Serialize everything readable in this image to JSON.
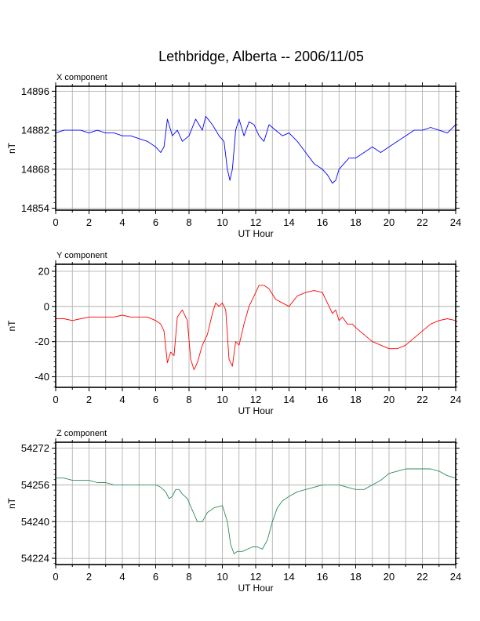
{
  "title": "Lethbridge, Alberta -- 2006/11/05",
  "chart_data": [
    {
      "type": "line",
      "panel_label": "X component",
      "xlabel": "UT Hour",
      "ylabel": "nT",
      "xlim": [
        0,
        24
      ],
      "ylim": [
        14853.3,
        14897.8
      ],
      "x_ticks": [
        0,
        2,
        4,
        6,
        8,
        10,
        12,
        14,
        16,
        18,
        20,
        22,
        24
      ],
      "y_ticks": [
        14896,
        14882,
        14868,
        14854
      ],
      "grid": true,
      "color": "#0000ff",
      "x": [
        0,
        0.5,
        1,
        1.5,
        2,
        2.5,
        3,
        3.5,
        4,
        4.5,
        5,
        5.5,
        6,
        6.3,
        6.5,
        6.7,
        7,
        7.3,
        7.6,
        8,
        8.4,
        8.8,
        9,
        9.4,
        9.8,
        10.1,
        10.3,
        10.45,
        10.6,
        10.8,
        11,
        11.3,
        11.6,
        11.9,
        12.2,
        12.5,
        12.8,
        13.2,
        13.6,
        14,
        14.5,
        15,
        15.5,
        16,
        16.3,
        16.6,
        16.8,
        17,
        17.3,
        17.6,
        18,
        18.5,
        19,
        19.5,
        20,
        20.5,
        21,
        21.5,
        22,
        22.5,
        23,
        23.5,
        24
      ],
      "values": [
        14881,
        14882,
        14882,
        14882,
        14881,
        14882,
        14881,
        14881,
        14880,
        14880,
        14879,
        14878,
        14876,
        14874,
        14876,
        14886,
        14880,
        14882,
        14878,
        14880,
        14886,
        14882,
        14887,
        14884,
        14880,
        14878,
        14868,
        14864,
        14868,
        14882,
        14886,
        14880,
        14885,
        14884,
        14880,
        14878,
        14884,
        14882,
        14880,
        14881,
        14878,
        14874,
        14870,
        14868,
        14866,
        14863,
        14864,
        14868,
        14870,
        14872,
        14872,
        14874,
        14876,
        14874,
        14876,
        14878,
        14880,
        14882,
        14882,
        14883,
        14882,
        14881,
        14884
      ]
    },
    {
      "type": "line",
      "panel_label": "Y component",
      "xlabel": "UT Hour",
      "ylabel": "nT",
      "xlim": [
        0,
        24
      ],
      "ylim": [
        -46,
        24
      ],
      "x_ticks": [
        0,
        2,
        4,
        6,
        8,
        10,
        12,
        14,
        16,
        18,
        20,
        22,
        24
      ],
      "y_ticks": [
        20,
        0,
        -20,
        -40
      ],
      "grid": true,
      "color": "#ff0000",
      "x": [
        0,
        0.5,
        1,
        1.5,
        2,
        2.5,
        3,
        3.5,
        4,
        4.5,
        5,
        5.5,
        6,
        6.3,
        6.5,
        6.7,
        6.9,
        7.1,
        7.3,
        7.6,
        7.9,
        8.1,
        8.3,
        8.5,
        8.8,
        9.1,
        9.4,
        9.6,
        9.8,
        10,
        10.2,
        10.4,
        10.6,
        10.8,
        11,
        11.3,
        11.6,
        11.9,
        12.2,
        12.5,
        12.8,
        13.2,
        13.6,
        14,
        14.5,
        15,
        15.5,
        16,
        16.3,
        16.6,
        16.8,
        17,
        17.2,
        17.5,
        17.8,
        18,
        18.5,
        19,
        19.5,
        20,
        20.5,
        21,
        21.5,
        22,
        22.5,
        23,
        23.5,
        24
      ],
      "values": [
        -7,
        -7,
        -8,
        -7,
        -6,
        -6,
        -6,
        -6,
        -5,
        -6,
        -6,
        -6,
        -8,
        -10,
        -14,
        -32,
        -26,
        -28,
        -6,
        -2,
        -8,
        -30,
        -36,
        -32,
        -22,
        -16,
        -4,
        2,
        0,
        2,
        -2,
        -30,
        -34,
        -20,
        -22,
        -10,
        0,
        6,
        12,
        12,
        10,
        4,
        2,
        0,
        6,
        8,
        9,
        8,
        2,
        -4,
        -2,
        -8,
        -6,
        -10,
        -10,
        -12,
        -16,
        -20,
        -22,
        -24,
        -24,
        -22,
        -18,
        -14,
        -10,
        -8,
        -7,
        -8
      ]
    },
    {
      "type": "line",
      "panel_label": "Z component",
      "xlabel": "UT Hour",
      "ylabel": "nT",
      "xlim": [
        0,
        24
      ],
      "ylim": [
        54221.3,
        54274.6
      ],
      "x_ticks": [
        0,
        2,
        4,
        6,
        8,
        10,
        12,
        14,
        16,
        18,
        20,
        22,
        24
      ],
      "y_ticks": [
        54272,
        54256,
        54240,
        54224
      ],
      "grid": true,
      "color": "#2e8b57",
      "x": [
        0,
        0.5,
        1,
        1.5,
        2,
        2.5,
        3,
        3.5,
        4,
        4.5,
        5,
        5.5,
        6,
        6.3,
        6.6,
        6.8,
        7,
        7.2,
        7.4,
        7.6,
        7.9,
        8.2,
        8.5,
        8.8,
        9.1,
        9.5,
        10,
        10.3,
        10.5,
        10.7,
        10.9,
        11.2,
        11.5,
        11.8,
        12.1,
        12.4,
        12.7,
        13,
        13.3,
        13.6,
        14,
        14.5,
        15,
        15.5,
        16,
        16.5,
        17,
        17.5,
        18,
        18.5,
        19,
        19.5,
        20,
        20.5,
        21,
        21.5,
        22,
        22.5,
        23,
        23.5,
        24
      ],
      "values": [
        54259,
        54259,
        54258,
        54258,
        54258,
        54257,
        54257,
        54256,
        54256,
        54256,
        54256,
        54256,
        54256,
        54255,
        54253,
        54250,
        54251,
        54254,
        54254,
        54252,
        54250,
        54245,
        54240,
        54240,
        54244,
        54246,
        54247,
        54240,
        54230,
        54226,
        54227,
        54227,
        54228,
        54229,
        54229,
        54228,
        54232,
        54240,
        54246,
        54249,
        54251,
        54253,
        54254,
        54255,
        54256,
        54256,
        54256,
        54255,
        54254,
        54254,
        54256,
        54258,
        54261,
        54262,
        54263,
        54263,
        54263,
        54263,
        54262,
        54260,
        54259
      ]
    }
  ]
}
